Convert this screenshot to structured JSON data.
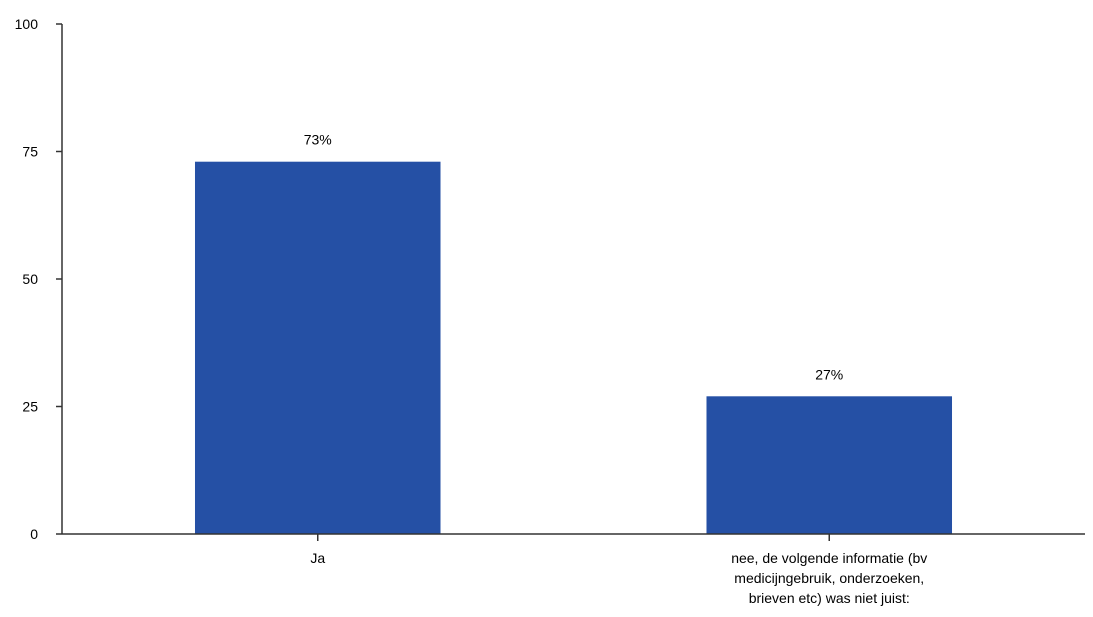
{
  "chart_data": {
    "type": "bar",
    "categories": [
      "Ja",
      "nee, de volgende informatie (bv medicijngebruik, onderzoeken, brieven etc) was niet juist:"
    ],
    "category_label_lines": [
      [
        "Ja"
      ],
      [
        "nee, de volgende informatie (bv",
        "medicijngebruik, onderzoeken,",
        "brieven etc) was niet juist:"
      ]
    ],
    "values": [
      73,
      27
    ],
    "data_labels": [
      "73%",
      "27%"
    ],
    "yticks": [
      0,
      25,
      50,
      75,
      100
    ],
    "ylim": [
      0,
      100
    ],
    "title": "",
    "xlabel": "",
    "ylabel": "",
    "grid": false,
    "bar_color": "#2550A5"
  }
}
